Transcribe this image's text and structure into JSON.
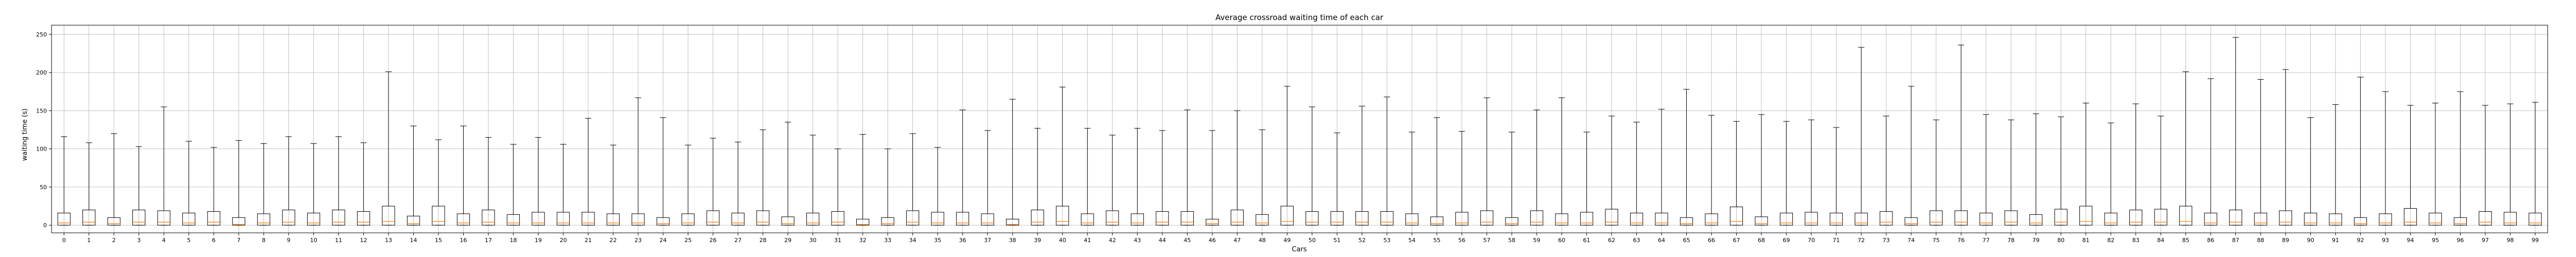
{
  "chart_data": {
    "type": "boxplot",
    "title": "Average crossroad waiting time of each car",
    "xlabel": "Cars",
    "ylabel": "waiting time (s)",
    "ylim": [
      -10,
      262
    ],
    "yticks": [
      0,
      50,
      100,
      150,
      200,
      250
    ],
    "grid": true,
    "colors": {
      "box": "#000000",
      "median": "#ff7f0e",
      "whisker": "#000000",
      "grid": "#b0b0b0"
    },
    "categories": [
      "0",
      "1",
      "2",
      "3",
      "4",
      "5",
      "6",
      "7",
      "8",
      "9",
      "10",
      "11",
      "12",
      "13",
      "14",
      "15",
      "16",
      "17",
      "18",
      "19",
      "20",
      "21",
      "22",
      "23",
      "24",
      "25",
      "26",
      "27",
      "28",
      "29",
      "30",
      "31",
      "32",
      "33",
      "34",
      "35",
      "36",
      "37",
      "38",
      "39",
      "40",
      "41",
      "42",
      "43",
      "44",
      "45",
      "46",
      "47",
      "48",
      "49",
      "50",
      "51",
      "52",
      "53",
      "54",
      "55",
      "56",
      "57",
      "58",
      "59",
      "60",
      "61",
      "62",
      "63",
      "64",
      "65",
      "66",
      "67",
      "68",
      "69",
      "70",
      "71",
      "72",
      "73",
      "74",
      "75",
      "76",
      "77",
      "78",
      "79",
      "80",
      "81",
      "82",
      "83",
      "84",
      "85",
      "86",
      "87",
      "88",
      "89",
      "90",
      "91",
      "92",
      "93",
      "94",
      "95",
      "96",
      "97",
      "98",
      "99"
    ],
    "whisker_high": [
      116,
      108,
      120,
      103,
      155,
      110,
      102,
      111,
      107,
      116,
      107,
      116,
      108,
      201,
      130,
      112,
      130,
      115,
      106,
      115,
      106,
      140,
      105,
      167,
      141,
      105,
      114,
      109,
      125,
      135,
      118,
      100,
      119,
      100,
      120,
      102,
      151,
      124,
      165,
      127,
      181,
      127,
      118,
      127,
      124,
      151,
      124,
      150,
      125,
      182,
      155,
      121,
      156,
      168,
      122,
      141,
      123,
      167,
      122,
      151,
      167,
      122,
      143,
      135,
      152,
      178,
      144,
      136,
      145,
      136,
      138,
      128,
      233,
      143,
      182,
      138,
      236,
      145,
      138,
      146,
      142,
      160,
      134,
      159,
      143,
      201,
      192,
      246,
      191,
      204,
      141,
      158,
      194,
      175,
      157,
      160,
      175,
      157,
      159,
      161
    ],
    "q3": [
      16,
      20,
      10,
      20,
      19,
      16,
      18,
      10,
      15,
      20,
      16,
      20,
      18,
      25,
      12,
      25,
      15,
      20,
      14,
      17,
      17,
      17,
      15,
      15,
      10,
      15,
      19,
      16,
      19,
      11,
      16,
      18,
      8,
      10,
      19,
      17,
      17,
      15,
      8,
      20,
      25,
      15,
      19,
      15,
      18,
      18,
      8,
      20,
      14,
      25,
      18,
      18,
      18,
      18,
      15,
      11,
      17,
      19,
      10,
      19,
      15,
      17,
      21,
      16,
      16,
      10,
      15,
      24,
      11,
      16,
      17,
      16,
      16,
      18,
      10,
      19,
      19,
      16,
      19,
      14,
      21,
      25,
      16,
      20,
      21,
      25,
      16,
      20,
      16,
      19,
      16,
      15,
      10,
      15,
      22,
      16,
      10,
      18,
      17,
      16
    ],
    "median": [
      3,
      4,
      2,
      4,
      4,
      3,
      4,
      1,
      3,
      4,
      3,
      4,
      4,
      5,
      2,
      5,
      3,
      4,
      3,
      3,
      3,
      3,
      3,
      3,
      2,
      3,
      4,
      3,
      4,
      2,
      3,
      4,
      1,
      2,
      4,
      3,
      3,
      3,
      1,
      4,
      5,
      3,
      4,
      3,
      4,
      4,
      2,
      4,
      3,
      5,
      4,
      4,
      4,
      4,
      3,
      2,
      3,
      4,
      2,
      4,
      3,
      3,
      4,
      3,
      3,
      2,
      3,
      5,
      2,
      3,
      3,
      3,
      3,
      4,
      2,
      4,
      4,
      3,
      4,
      3,
      4,
      5,
      3,
      4,
      4,
      5,
      3,
      4,
      3,
      4,
      3,
      3,
      2,
      3,
      4,
      3,
      2,
      4,
      3,
      3
    ],
    "q1": [
      0,
      0,
      0,
      0,
      0,
      0,
      0,
      0,
      0,
      0,
      0,
      0,
      0,
      0,
      0,
      0,
      0,
      0,
      0,
      0,
      0,
      0,
      0,
      0,
      0,
      0,
      0,
      0,
      0,
      0,
      0,
      0,
      0,
      0,
      0,
      0,
      0,
      0,
      0,
      0,
      0,
      0,
      0,
      0,
      0,
      0,
      0,
      0,
      0,
      0,
      0,
      0,
      0,
      0,
      0,
      0,
      0,
      0,
      0,
      0,
      0,
      0,
      0,
      0,
      0,
      0,
      0,
      0,
      0,
      0,
      0,
      0,
      0,
      0,
      0,
      0,
      0,
      0,
      0,
      0,
      0,
      0,
      0,
      0,
      0,
      0,
      0,
      0,
      0,
      0,
      0,
      0,
      0,
      0,
      0,
      0,
      0,
      0,
      0,
      0
    ],
    "whisker_low": [
      0,
      0,
      0,
      0,
      0,
      0,
      0,
      0,
      0,
      0,
      0,
      0,
      0,
      0,
      0,
      0,
      0,
      0,
      0,
      0,
      0,
      0,
      0,
      0,
      0,
      0,
      0,
      0,
      0,
      0,
      0,
      0,
      0,
      0,
      0,
      0,
      0,
      0,
      0,
      0,
      0,
      0,
      0,
      0,
      0,
      0,
      0,
      0,
      0,
      0,
      0,
      0,
      0,
      0,
      0,
      0,
      0,
      0,
      0,
      0,
      0,
      0,
      0,
      0,
      0,
      0,
      0,
      0,
      0,
      0,
      0,
      0,
      0,
      0,
      0,
      0,
      0,
      0,
      0,
      0,
      0,
      0,
      0,
      0,
      0,
      0,
      0,
      0,
      0,
      0,
      0,
      0,
      0,
      0,
      0,
      0,
      0,
      0,
      0,
      0
    ]
  }
}
